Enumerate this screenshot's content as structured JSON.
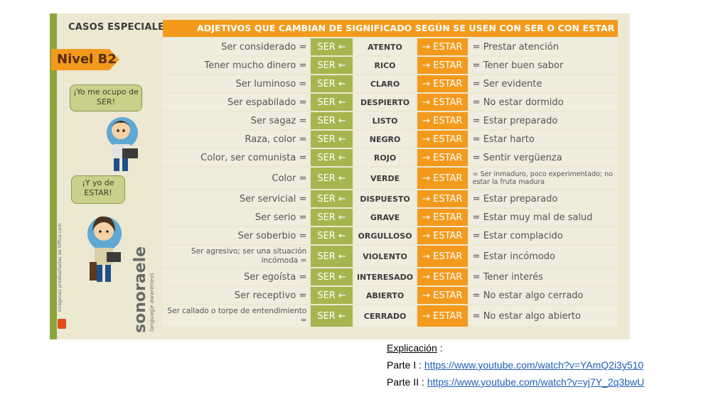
{
  "card": {
    "header_left": "CASOS ESPECIALES:",
    "title": "ADJETIVOS QUE CAMBIAN DE SIGNIFICADO SEGÚN SE USEN CON SER O CON ESTAR",
    "nivel": "Nivel B2",
    "bubble_ser": "¡Yo me ocupo de SER!",
    "bubble_estar": "¡Y yo de ESTAR!",
    "brand": "sonoraele",
    "brand_sub": "language awareness",
    "office_credit": "Imágenes prediseñadas de Office.com"
  },
  "rows": [
    {
      "ser": "Ser considerado =",
      "ser_label": "SER ←",
      "adj": "ATENTO",
      "estar_label": "→ ESTAR",
      "estar": "= Prestar atención"
    },
    {
      "ser": "Tener mucho dinero =",
      "ser_label": "SER ←",
      "adj": "RICO",
      "estar_label": "→ ESTAR",
      "estar": "= Tener buen sabor"
    },
    {
      "ser": "Ser luminoso =",
      "ser_label": "SER ←",
      "adj": "CLARO",
      "estar_label": "→ ESTAR",
      "estar": "= Ser evidente"
    },
    {
      "ser": "Ser espabilado =",
      "ser_label": "SER ←",
      "adj": "DESPIERTO",
      "estar_label": "→ ESTAR",
      "estar": "= No estar dormido"
    },
    {
      "ser": "Ser sagaz =",
      "ser_label": "SER ←",
      "adj": "LISTO",
      "estar_label": "→ ESTAR",
      "estar": "= Estar preparado"
    },
    {
      "ser": "Raza, color =",
      "ser_label": "SER ←",
      "adj": "NEGRO",
      "estar_label": "→ ESTAR",
      "estar": "= Estar harto"
    },
    {
      "ser": "Color, ser comunista =",
      "ser_label": "SER ←",
      "adj": "ROJO",
      "estar_label": "→ ESTAR",
      "estar": "= Sentir vergüenza"
    },
    {
      "ser": "Color =",
      "ser_label": "SER ←",
      "adj": "VERDE",
      "estar_label": "→ ESTAR",
      "estar": "= Ser inmaduro, poco experimentado; no estar la fruta madura",
      "estar_small": true,
      "tall": true
    },
    {
      "ser": "Ser servicial =",
      "ser_label": "SER ←",
      "adj": "DISPUESTO",
      "estar_label": "→ ESTAR",
      "estar": "= Estar preparado"
    },
    {
      "ser": "Ser serio =",
      "ser_label": "SER ←",
      "adj": "GRAVE",
      "estar_label": "→ ESTAR",
      "estar": "= Estar muy mal de salud"
    },
    {
      "ser": "Ser soberbio =",
      "ser_label": "SER ←",
      "adj": "ORGULLOSO",
      "estar_label": "→ ESTAR",
      "estar": "= Estar complacido"
    },
    {
      "ser": "Ser agresivo; ser una situación incómoda =",
      "ser_small": true,
      "tall": true,
      "ser_label": "SER ←",
      "adj": "VIOLENTO",
      "estar_label": "→ ESTAR",
      "estar": "= Estar incómodo"
    },
    {
      "ser": "Ser egoísta =",
      "ser_label": "SER ←",
      "adj": "INTERESADO",
      "estar_label": "→ ESTAR",
      "estar": "= Tener interés"
    },
    {
      "ser": "Ser receptivo =",
      "ser_label": "SER ←",
      "adj": "ABIERTO",
      "estar_label": "→ ESTAR",
      "estar": "= No estar algo cerrado"
    },
    {
      "ser": "Ser callado o torpe de entendimiento =",
      "ser_small": true,
      "tall": true,
      "ser_label": "SER ←",
      "adj": "CERRADO",
      "estar_label": "→ ESTAR",
      "estar": "= No estar algo abierto"
    }
  ],
  "links": {
    "heading": "Explicación",
    "heading_suffix": " :",
    "part1_label": "Parte I : ",
    "part1_url": "https://www.youtube.com/watch?v=YAmQ2i3y510",
    "part2_label": "Parte II : ",
    "part2_url": "https://www.youtube.com/watch?v=yj7Y_2q3bwU"
  }
}
